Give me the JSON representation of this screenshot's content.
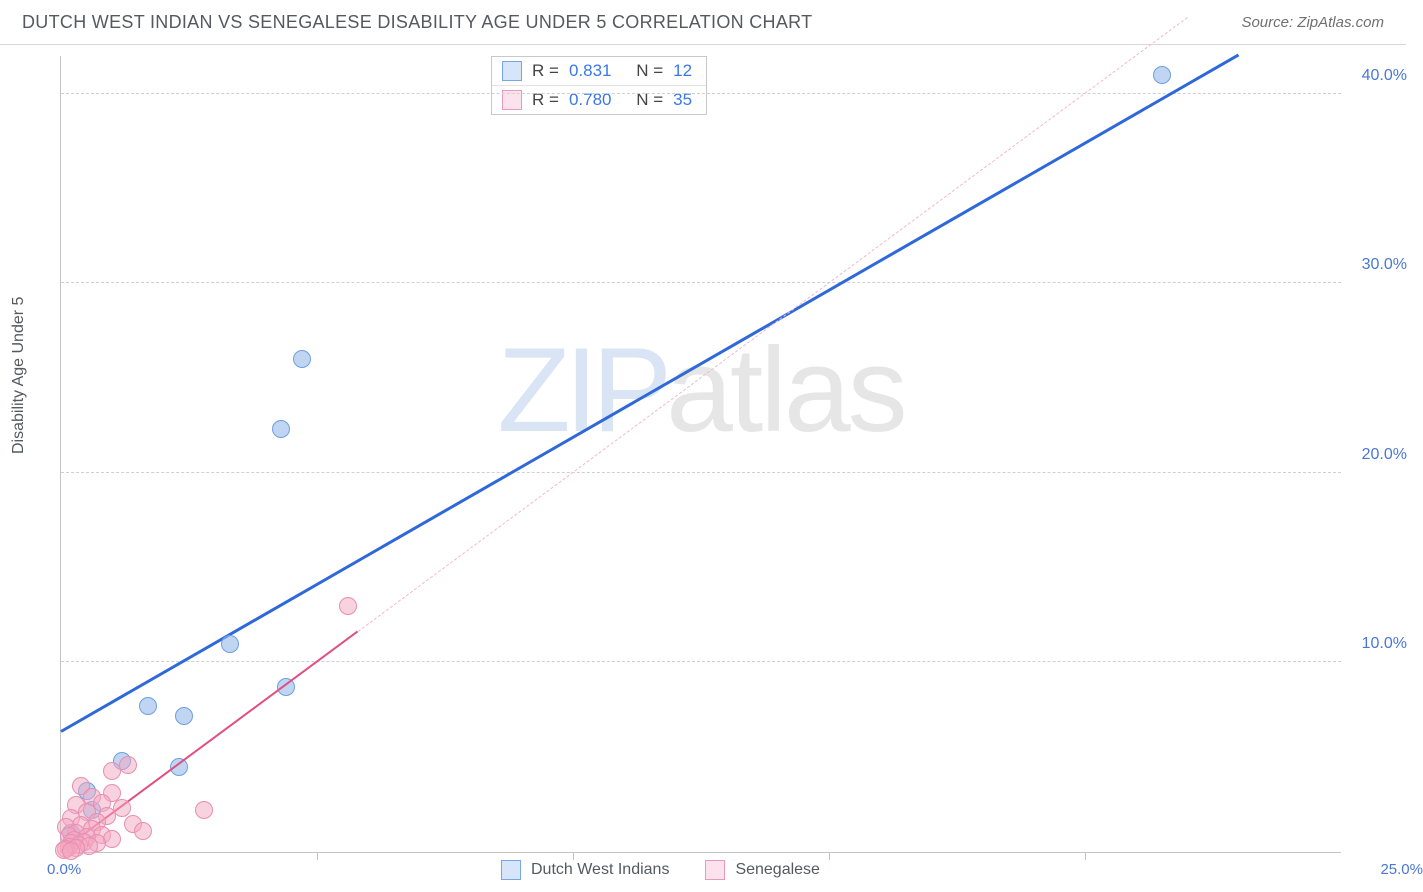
{
  "header": {
    "title": "DUTCH WEST INDIAN VS SENEGALESE DISABILITY AGE UNDER 5 CORRELATION CHART",
    "source": "Source: ZipAtlas.com"
  },
  "watermark": {
    "zip": "ZIP",
    "atlas": "atlas"
  },
  "chart": {
    "type": "scatter",
    "y_axis_label": "Disability Age Under 5",
    "background_color": "#ffffff",
    "grid_color": "#d0d0d0",
    "axis_color": "#c4c4c4",
    "x": {
      "min": 0,
      "max": 25,
      "unit": "%",
      "start_label": "0.0%",
      "end_label": "25.0%",
      "tick_step": 5,
      "label_color": "#4a77d4"
    },
    "y": {
      "min": 0,
      "max": 42,
      "unit": "%",
      "ticks": [
        10,
        20,
        30,
        40
      ],
      "tick_labels": [
        "10.0%",
        "20.0%",
        "30.0%",
        "40.0%"
      ],
      "label_color": "#4a77d4"
    },
    "series": [
      {
        "id": "dutch",
        "label": "Dutch West Indians",
        "marker_color_fill": "rgba(139,179,232,0.55)",
        "marker_color_stroke": "#6f9fe0",
        "marker_radius": 9,
        "trend_color": "#2f68d8",
        "trend_width": 3,
        "trend_style": "solid",
        "trend_dashed_color": "#7aa3e8",
        "R": "0.831",
        "N": "12",
        "swatch_fill": "#d7e5fb",
        "swatch_border": "#7ba4e6",
        "points": [
          {
            "x": 21.5,
            "y": 41.0
          },
          {
            "x": 4.7,
            "y": 26.0
          },
          {
            "x": 4.3,
            "y": 22.3
          },
          {
            "x": 3.3,
            "y": 11.0
          },
          {
            "x": 4.4,
            "y": 8.7
          },
          {
            "x": 1.7,
            "y": 7.7
          },
          {
            "x": 2.4,
            "y": 7.2
          },
          {
            "x": 1.2,
            "y": 4.8
          },
          {
            "x": 2.3,
            "y": 4.5
          },
          {
            "x": 0.5,
            "y": 3.2
          },
          {
            "x": 0.6,
            "y": 2.2
          },
          {
            "x": 0.2,
            "y": 1.0
          }
        ],
        "trend": {
          "x1": 0,
          "y1": 6.3,
          "x2": 23.0,
          "y2": 42.0
        },
        "trend_overflow": {
          "x1": 23.0,
          "y1": 42.0,
          "x2": 25.0,
          "y2": 45.1
        }
      },
      {
        "id": "senegalese",
        "label": "Senegalese",
        "marker_color_fill": "rgba(243,165,191,0.50)",
        "marker_color_stroke": "#e88fb0",
        "marker_radius": 9,
        "trend_color": "#e14f82",
        "trend_width": 2,
        "trend_style": "solid",
        "trend_dashed_color": "#f3b7cd",
        "R": "0.780",
        "N": "35",
        "swatch_fill": "#fbe2ec",
        "swatch_border": "#e89ab6",
        "points": [
          {
            "x": 5.6,
            "y": 13.0
          },
          {
            "x": 2.8,
            "y": 2.2
          },
          {
            "x": 1.3,
            "y": 4.6
          },
          {
            "x": 1.0,
            "y": 4.3
          },
          {
            "x": 0.4,
            "y": 3.5
          },
          {
            "x": 1.0,
            "y": 3.1
          },
          {
            "x": 0.6,
            "y": 2.9
          },
          {
            "x": 0.8,
            "y": 2.6
          },
          {
            "x": 0.3,
            "y": 2.5
          },
          {
            "x": 1.2,
            "y": 2.3
          },
          {
            "x": 0.5,
            "y": 2.1
          },
          {
            "x": 0.9,
            "y": 1.9
          },
          {
            "x": 0.2,
            "y": 1.8
          },
          {
            "x": 0.7,
            "y": 1.6
          },
          {
            "x": 1.4,
            "y": 1.5
          },
          {
            "x": 0.4,
            "y": 1.4
          },
          {
            "x": 0.1,
            "y": 1.3
          },
          {
            "x": 0.6,
            "y": 1.2
          },
          {
            "x": 1.6,
            "y": 1.1
          },
          {
            "x": 0.3,
            "y": 1.0
          },
          {
            "x": 0.8,
            "y": 0.9
          },
          {
            "x": 0.15,
            "y": 0.85
          },
          {
            "x": 0.5,
            "y": 0.8
          },
          {
            "x": 1.0,
            "y": 0.7
          },
          {
            "x": 0.25,
            "y": 0.65
          },
          {
            "x": 0.45,
            "y": 0.55
          },
          {
            "x": 0.7,
            "y": 0.5
          },
          {
            "x": 0.2,
            "y": 0.45
          },
          {
            "x": 0.35,
            "y": 0.35
          },
          {
            "x": 0.55,
            "y": 0.3
          },
          {
            "x": 0.15,
            "y": 0.25
          },
          {
            "x": 0.3,
            "y": 0.2
          },
          {
            "x": 0.1,
            "y": 0.15
          },
          {
            "x": 0.05,
            "y": 0.1
          },
          {
            "x": 0.2,
            "y": 0.05
          }
        ],
        "trend": {
          "x1": 0,
          "y1": 0.0,
          "x2": 5.8,
          "y2": 11.6
        },
        "trend_dashed": {
          "x1": 5.8,
          "y1": 11.6,
          "x2": 22.0,
          "y2": 44.0
        }
      }
    ],
    "top_legend_labels": {
      "R": "R  =",
      "N": "N  ="
    },
    "bottom_legend": [
      {
        "ref": "dutch"
      },
      {
        "ref": "senegalese"
      }
    ]
  }
}
